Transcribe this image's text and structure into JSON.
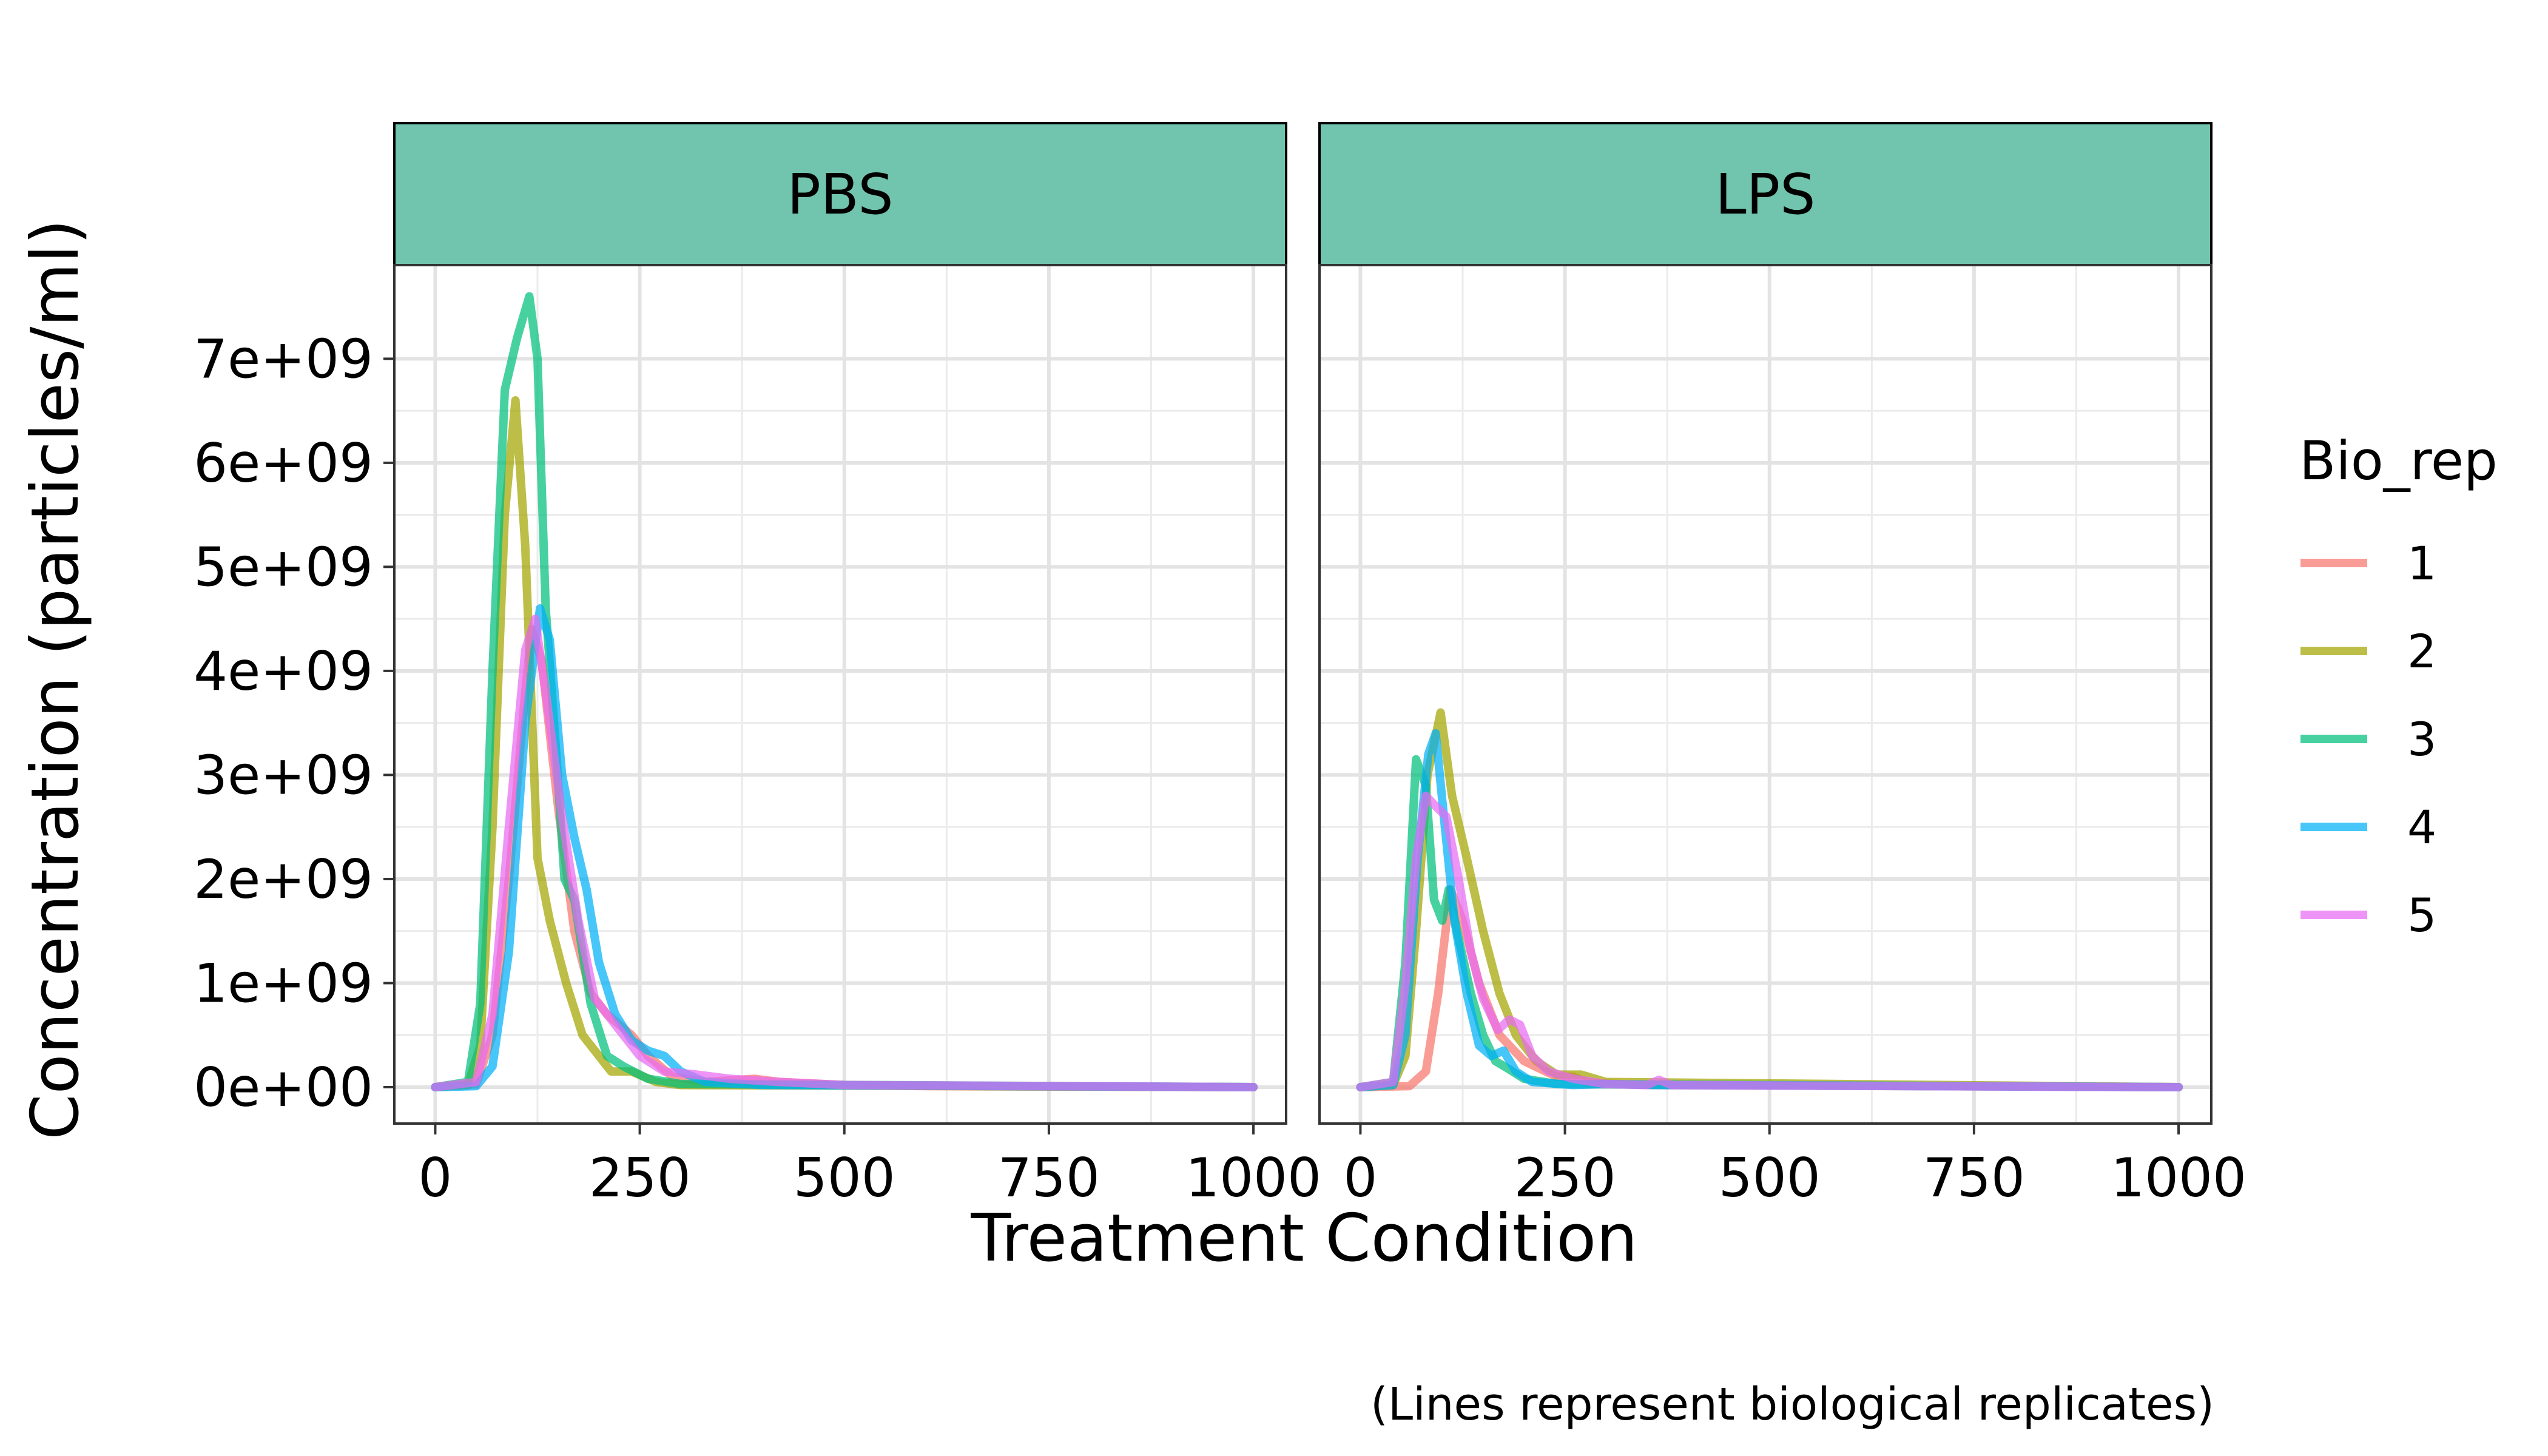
{
  "chart_data": {
    "type": "line",
    "xlabel": "Treatment Condition",
    "ylabel": "Concentration (particles/ml)",
    "caption": "(Lines represent biological replicates)",
    "xlim": [
      -50,
      1040
    ],
    "ylim": [
      -350000000.0,
      7900000000.0
    ],
    "x_ticks": [
      0,
      250,
      500,
      750,
      1000
    ],
    "x_tick_labels": [
      "0",
      "250",
      "500",
      "750",
      "1000"
    ],
    "y_ticks": [
      0,
      1000000000.0,
      2000000000.0,
      3000000000.0,
      4000000000.0,
      5000000000.0,
      6000000000.0,
      7000000000.0
    ],
    "y_tick_labels": [
      "0e+00",
      "1e+09",
      "2e+09",
      "3e+09",
      "4e+09",
      "5e+09",
      "6e+09",
      "7e+09"
    ],
    "grid": true,
    "legend": {
      "title": "Bio_rep",
      "placement": "right",
      "entries": [
        {
          "label": "1",
          "color": "#F8766D"
        },
        {
          "label": "2",
          "color": "#A3A500"
        },
        {
          "label": "3",
          "color": "#00BF7D"
        },
        {
          "label": "4",
          "color": "#00B0F6"
        },
        {
          "label": "5",
          "color": "#E76BF3"
        }
      ]
    },
    "strip_color": "#71C4AD",
    "panels": [
      {
        "title": "PBS",
        "series": [
          {
            "name": "1",
            "color": "#F8766D",
            "points": [
              [
                0,
                0
              ],
              [
                50,
                30000000.0
              ],
              [
                70,
                500000000.0
              ],
              [
                90,
                2000000000.0
              ],
              [
                110,
                3800000000.0
              ],
              [
                118,
                4400000000.0
              ],
              [
                130,
                4100000000.0
              ],
              [
                150,
                2700000000.0
              ],
              [
                170,
                1500000000.0
              ],
              [
                190,
                900000000.0
              ],
              [
                210,
                700000000.0
              ],
              [
                240,
                500000000.0
              ],
              [
                260,
                300000000.0
              ],
              [
                290,
                100000000.0
              ],
              [
                330,
                50000000.0
              ],
              [
                390,
                80000000.0
              ],
              [
                420,
                50000000.0
              ],
              [
                500,
                20000000.0
              ],
              [
                600,
                10000000.0
              ],
              [
                1000,
                0
              ]
            ]
          },
          {
            "name": "2",
            "color": "#A3A500",
            "points": [
              [
                0,
                0
              ],
              [
                40,
                20000000.0
              ],
              [
                55,
                400000000.0
              ],
              [
                70,
                2500000000.0
              ],
              [
                85,
                5500000000.0
              ],
              [
                98,
                6600000000.0
              ],
              [
                110,
                5200000000.0
              ],
              [
                125,
                2200000000.0
              ],
              [
                140,
                1600000000.0
              ],
              [
                160,
                1000000000.0
              ],
              [
                180,
                500000000.0
              ],
              [
                200,
                300000000.0
              ],
              [
                215,
                150000000.0
              ],
              [
                240,
                150000000.0
              ],
              [
                270,
                50000000.0
              ],
              [
                300,
                20000000.0
              ],
              [
                1000,
                0
              ]
            ]
          },
          {
            "name": "3",
            "color": "#00BF7D",
            "points": [
              [
                0,
                0
              ],
              [
                40,
                50000000.0
              ],
              [
                55,
                800000000.0
              ],
              [
                70,
                4000000000.0
              ],
              [
                85,
                6700000000.0
              ],
              [
                100,
                7200000000.0
              ],
              [
                115,
                7600000000.0
              ],
              [
                125,
                7000000000.0
              ],
              [
                135,
                4600000000.0
              ],
              [
                148,
                3200000000.0
              ],
              [
                158,
                2000000000.0
              ],
              [
                170,
                1800000000.0
              ],
              [
                190,
                800000000.0
              ],
              [
                210,
                300000000.0
              ],
              [
                230,
                200000000.0
              ],
              [
                260,
                80000000.0
              ],
              [
                300,
                30000000.0
              ],
              [
                1000,
                0
              ]
            ]
          },
          {
            "name": "4",
            "color": "#00B0F6",
            "points": [
              [
                0,
                0
              ],
              [
                50,
                10000000.0
              ],
              [
                70,
                200000000.0
              ],
              [
                90,
                1300000000.0
              ],
              [
                110,
                3500000000.0
              ],
              [
                128,
                4600000000.0
              ],
              [
                140,
                4300000000.0
              ],
              [
                155,
                3000000000.0
              ],
              [
                170,
                2400000000.0
              ],
              [
                185,
                1900000000.0
              ],
              [
                200,
                1200000000.0
              ],
              [
                220,
                700000000.0
              ],
              [
                240,
                450000000.0
              ],
              [
                260,
                350000000.0
              ],
              [
                280,
                300000000.0
              ],
              [
                300,
                150000000.0
              ],
              [
                330,
                50000000.0
              ],
              [
                400,
                20000000.0
              ],
              [
                1000,
                0
              ]
            ]
          },
          {
            "name": "5",
            "color": "#E76BF3",
            "points": [
              [
                0,
                0
              ],
              [
                50,
                50000000.0
              ],
              [
                70,
                700000000.0
              ],
              [
                90,
                2500000000.0
              ],
              [
                110,
                4200000000.0
              ],
              [
                122,
                4500000000.0
              ],
              [
                135,
                3800000000.0
              ],
              [
                155,
                2600000000.0
              ],
              [
                175,
                1600000000.0
              ],
              [
                195,
                850000000.0
              ],
              [
                220,
                600000000.0
              ],
              [
                250,
                300000000.0
              ],
              [
                280,
                150000000.0
              ],
              [
                320,
                120000000.0
              ],
              [
                360,
                80000000.0
              ],
              [
                420,
                50000000.0
              ],
              [
                500,
                20000000.0
              ],
              [
                1000,
                0
              ]
            ]
          }
        ]
      },
      {
        "title": "LPS",
        "series": [
          {
            "name": "1",
            "color": "#F8766D",
            "points": [
              [
                0,
                0
              ],
              [
                60,
                10000000.0
              ],
              [
                80,
                150000000.0
              ],
              [
                95,
                900000000.0
              ],
              [
                110,
                1900000000.0
              ],
              [
                125,
                1600000000.0
              ],
              [
                145,
                1000000000.0
              ],
              [
                170,
                500000000.0
              ],
              [
                200,
                250000000.0
              ],
              [
                240,
                100000000.0
              ],
              [
                260,
                100000000.0
              ],
              [
                280,
                40000000.0
              ],
              [
                350,
                20000000.0
              ],
              [
                1000,
                0
              ]
            ]
          },
          {
            "name": "2",
            "color": "#A3A500",
            "points": [
              [
                0,
                0
              ],
              [
                40,
                20000000.0
              ],
              [
                55,
                300000000.0
              ],
              [
                68,
                1500000000.0
              ],
              [
                82,
                3000000000.0
              ],
              [
                98,
                3600000000.0
              ],
              [
                112,
                2800000000.0
              ],
              [
                130,
                2200000000.0
              ],
              [
                150,
                1500000000.0
              ],
              [
                170,
                900000000.0
              ],
              [
                190,
                500000000.0
              ],
              [
                215,
                250000000.0
              ],
              [
                240,
                120000000.0
              ],
              [
                270,
                120000000.0
              ],
              [
                300,
                50000000.0
              ],
              [
                1000,
                0
              ]
            ]
          },
          {
            "name": "3",
            "color": "#00BF7D",
            "points": [
              [
                0,
                0
              ],
              [
                40,
                50000000.0
              ],
              [
                55,
                1200000000.0
              ],
              [
                68,
                3150000000.0
              ],
              [
                80,
                2900000000.0
              ],
              [
                90,
                1800000000.0
              ],
              [
                100,
                1600000000.0
              ],
              [
                108,
                1900000000.0
              ],
              [
                118,
                1500000000.0
              ],
              [
                135,
                900000000.0
              ],
              [
                150,
                500000000.0
              ],
              [
                165,
                250000000.0
              ],
              [
                180,
                180000000.0
              ],
              [
                200,
                80000000.0
              ],
              [
                240,
                30000000.0
              ],
              [
                1000,
                0
              ]
            ]
          },
          {
            "name": "4",
            "color": "#00B0F6",
            "points": [
              [
                0,
                0
              ],
              [
                40,
                20000000.0
              ],
              [
                55,
                500000000.0
              ],
              [
                70,
                2200000000.0
              ],
              [
                83,
                3200000000.0
              ],
              [
                92,
                3400000000.0
              ],
              [
                102,
                2600000000.0
              ],
              [
                115,
                1600000000.0
              ],
              [
                130,
                900000000.0
              ],
              [
                145,
                400000000.0
              ],
              [
                160,
                300000000.0
              ],
              [
                175,
                350000000.0
              ],
              [
                190,
                150000000.0
              ],
              [
                210,
                50000000.0
              ],
              [
                260,
                20000000.0
              ],
              [
                300,
                30000000.0
              ],
              [
                360,
                20000000.0
              ],
              [
                1000,
                0
              ]
            ]
          },
          {
            "name": "5",
            "color": "#E76BF3",
            "points": [
              [
                0,
                0
              ],
              [
                40,
                50000000.0
              ],
              [
                55,
                1000000000.0
              ],
              [
                68,
                2200000000.0
              ],
              [
                80,
                2800000000.0
              ],
              [
                92,
                2700000000.0
              ],
              [
                105,
                2600000000.0
              ],
              [
                120,
                2000000000.0
              ],
              [
                135,
                1300000000.0
              ],
              [
                150,
                850000000.0
              ],
              [
                168,
                550000000.0
              ],
              [
                182,
                650000000.0
              ],
              [
                195,
                600000000.0
              ],
              [
                210,
                300000000.0
              ],
              [
                230,
                150000000.0
              ],
              [
                260,
                80000000.0
              ],
              [
                300,
                30000000.0
              ],
              [
                350,
                20000000.0
              ],
              [
                365,
                70000000.0
              ],
              [
                380,
                20000000.0
              ],
              [
                1000,
                0
              ]
            ]
          }
        ]
      }
    ]
  }
}
